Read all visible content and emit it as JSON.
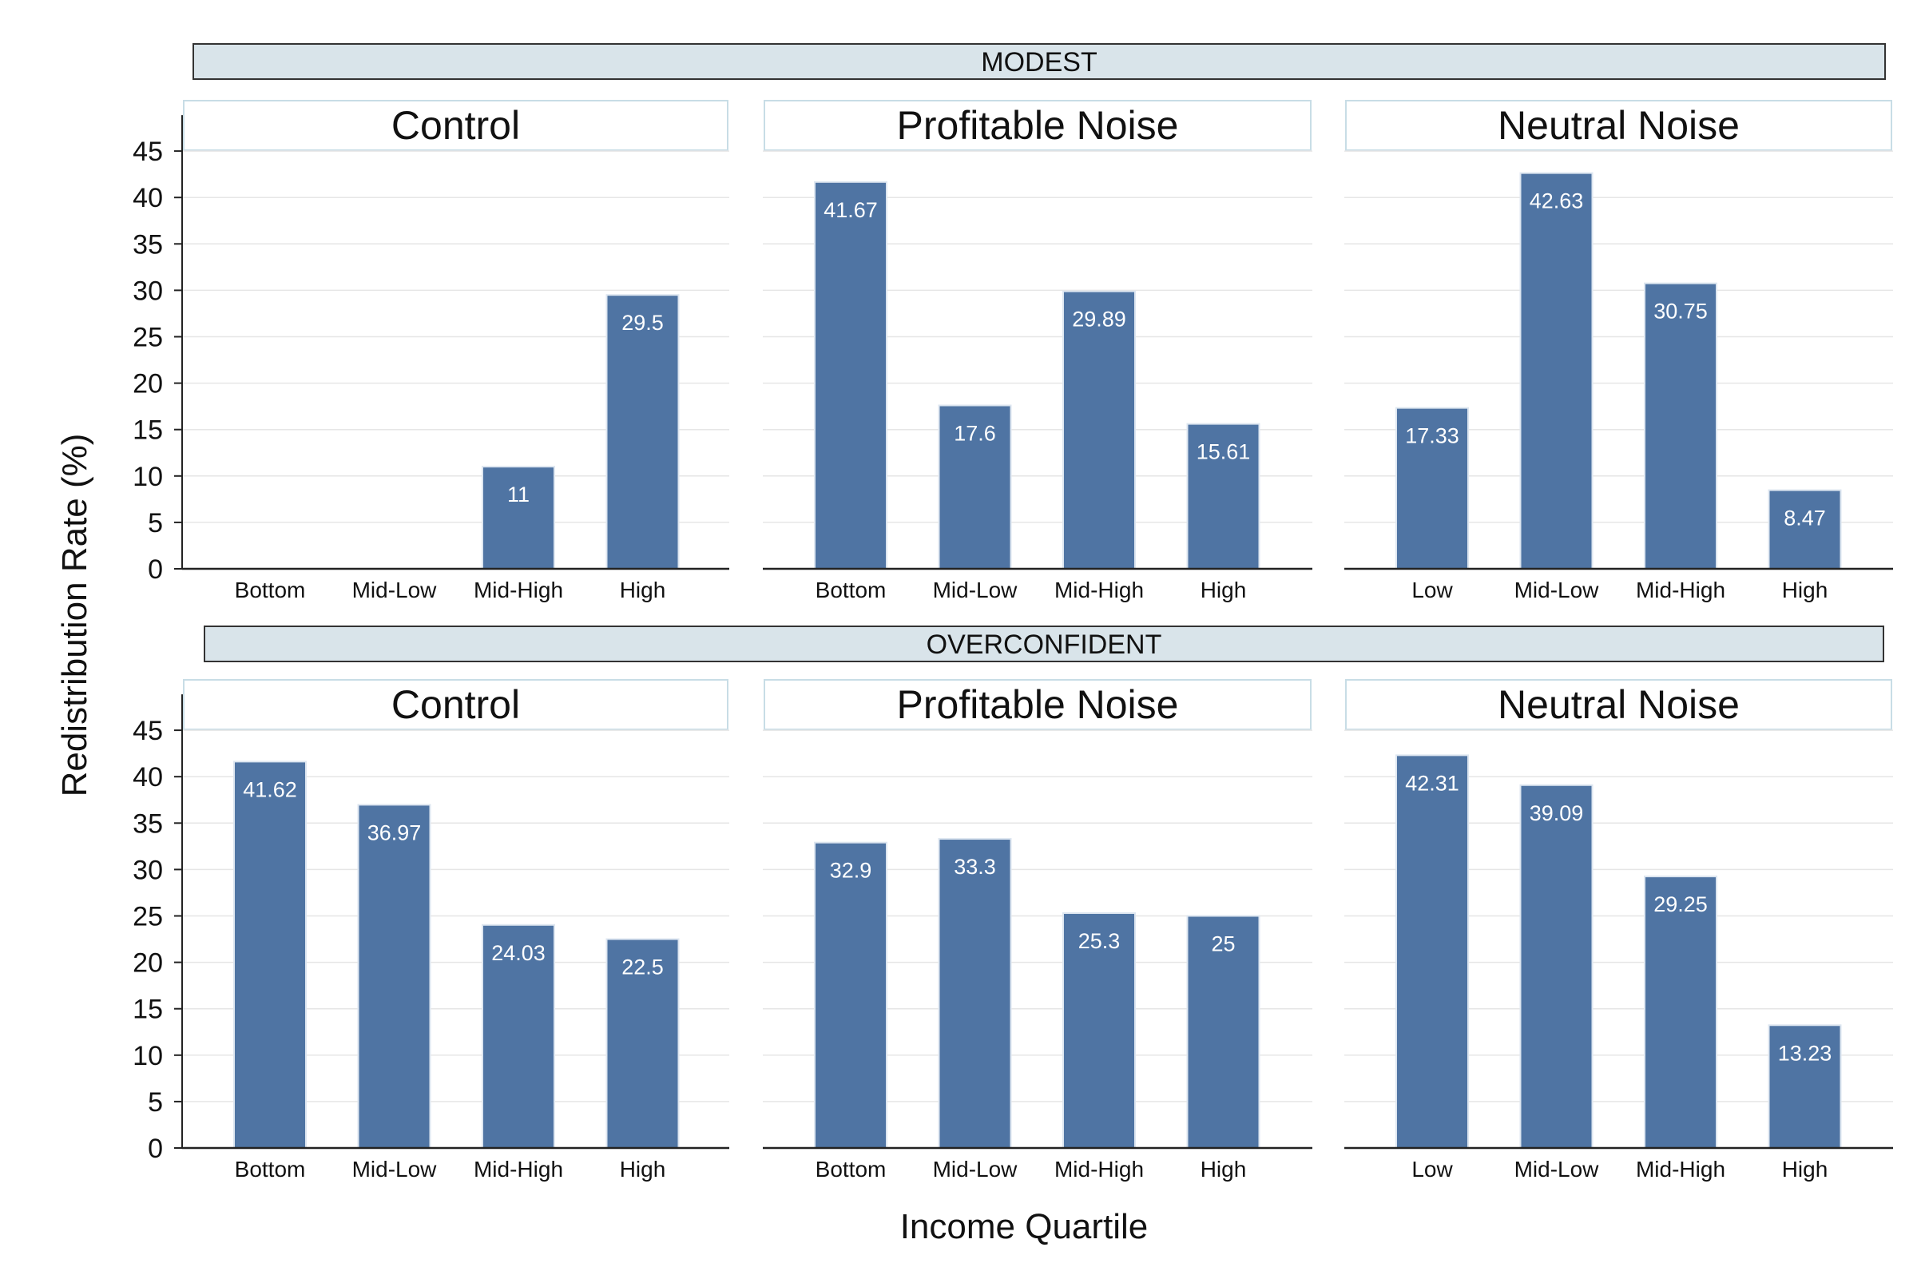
{
  "colors": {
    "bar": "#4f74a3",
    "bar_outline": "#dde6f0",
    "group_header_fill": "#d9e4ea",
    "panel_title_border": "#c8dde6",
    "grid": "#e6e6e6",
    "axis": "#222222",
    "text": "#111111",
    "bar_label": "#ffffff"
  },
  "y_axis_label": "Redistribution Rate (%)",
  "x_axis_label": "Income Quartile",
  "chart_data": [
    {
      "type": "bar",
      "group": "MODEST",
      "title": "Control",
      "categories": [
        "Bottom",
        "Mid-Low",
        "Mid-High",
        "High"
      ],
      "values": [
        null,
        null,
        11,
        29.5
      ],
      "labels": [
        "",
        "",
        "11",
        "29.5"
      ],
      "ylim": [
        0,
        45
      ],
      "yticks": [
        0,
        5,
        10,
        15,
        20,
        25,
        30,
        35,
        40,
        45
      ],
      "grid": true
    },
    {
      "type": "bar",
      "group": "MODEST",
      "title": "Profitable Noise",
      "categories": [
        "Bottom",
        "Mid-Low",
        "Mid-High",
        "High"
      ],
      "values": [
        41.67,
        17.6,
        29.89,
        15.61
      ],
      "labels": [
        "41.67",
        "17.6",
        "29.89",
        "15.61"
      ],
      "ylim": [
        0,
        45
      ],
      "grid": true
    },
    {
      "type": "bar",
      "group": "MODEST",
      "title": "Neutral Noise",
      "categories": [
        "Low",
        "Mid-Low",
        "Mid-High",
        "High"
      ],
      "values": [
        17.33,
        42.63,
        30.75,
        8.47
      ],
      "labels": [
        "17.33",
        "42.63",
        "30.75",
        "8.47"
      ],
      "ylim": [
        0,
        45
      ],
      "grid": true
    },
    {
      "type": "bar",
      "group": "OVERCONFIDENT",
      "title": "Control",
      "categories": [
        "Bottom",
        "Mid-Low",
        "Mid-High",
        "High"
      ],
      "values": [
        41.62,
        36.97,
        24.03,
        22.5
      ],
      "labels": [
        "41.62",
        "36.97",
        "24.03",
        "22.5"
      ],
      "ylim": [
        0,
        45
      ],
      "yticks": [
        0,
        5,
        10,
        15,
        20,
        25,
        30,
        35,
        40,
        45
      ],
      "grid": true
    },
    {
      "type": "bar",
      "group": "OVERCONFIDENT",
      "title": "Profitable Noise",
      "categories": [
        "Bottom",
        "Mid-Low",
        "Mid-High",
        "High"
      ],
      "values": [
        32.9,
        33.3,
        25.3,
        25
      ],
      "labels": [
        "32.9",
        "33.3",
        "25.3",
        "25"
      ],
      "ylim": [
        0,
        45
      ],
      "grid": true
    },
    {
      "type": "bar",
      "group": "OVERCONFIDENT",
      "title": "Neutral Noise",
      "categories": [
        "Low",
        "Mid-Low",
        "Mid-High",
        "High"
      ],
      "values": [
        42.31,
        39.09,
        29.25,
        13.23
      ],
      "labels": [
        "42.31",
        "39.09",
        "29.25",
        "13.23"
      ],
      "ylim": [
        0,
        45
      ],
      "grid": true
    }
  ]
}
